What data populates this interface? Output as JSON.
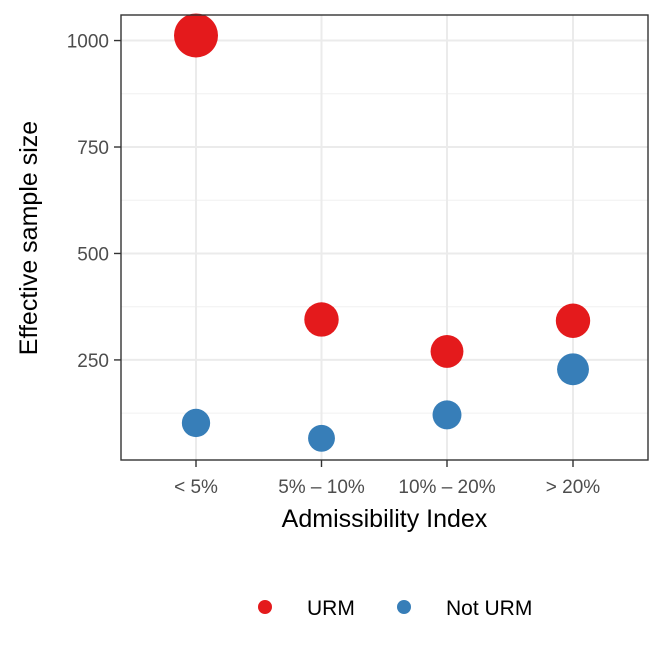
{
  "chart_data": {
    "type": "scatter",
    "title": "",
    "xlabel": "Admissibility Index",
    "ylabel": "Effective sample size",
    "categories": [
      "< 5%",
      "5% – 10%",
      "10% – 20%",
      "> 20%"
    ],
    "y_ticks": [
      250,
      500,
      750,
      1000
    ],
    "ylim": [
      15,
      1060
    ],
    "grid": true,
    "legend_position": "bottom",
    "point_size_encodes": "y value (relative)",
    "series": [
      {
        "name": "URM",
        "color": "#e41a1c",
        "values": [
          1012,
          345,
          270,
          342
        ]
      },
      {
        "name": "Not URM",
        "color": "#377eb8",
        "values": [
          102,
          66,
          121,
          228
        ]
      }
    ]
  }
}
